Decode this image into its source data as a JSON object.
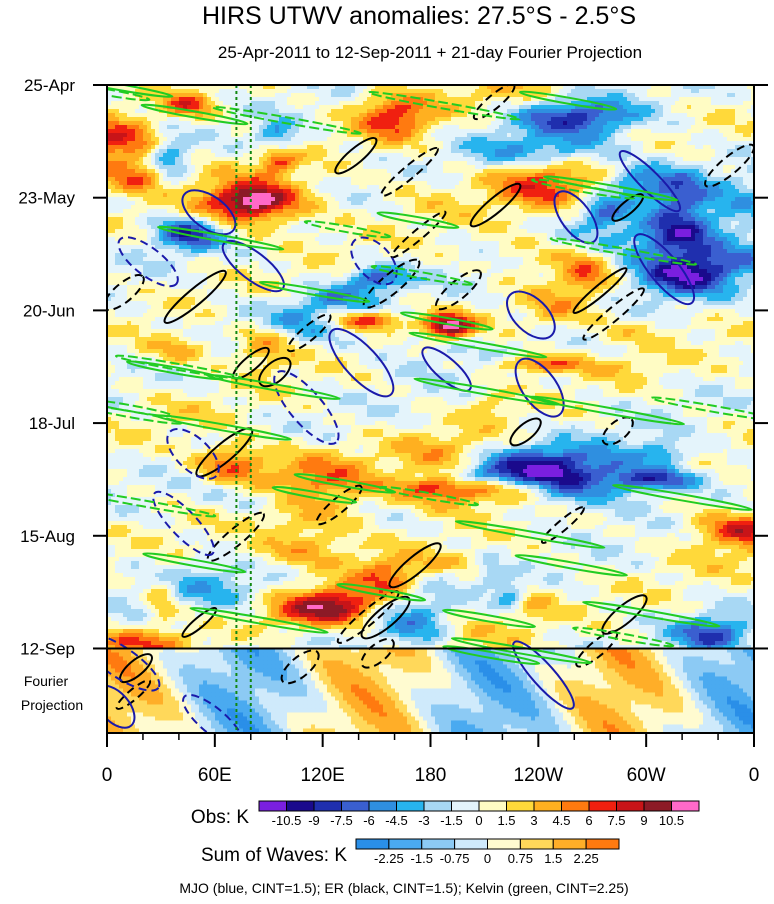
{
  "chart_data": {
    "type": "heatmap",
    "title": "HIRS UTWV anomalies: 27.5°S - 2.5°S",
    "subtitle": "25-Apr-2011 to 12-Sep-2011 + 21-day Fourier Projection",
    "x_axis": {
      "tick_labels": [
        "0",
        "60E",
        "120E",
        "180",
        "120W",
        "60W",
        "0"
      ],
      "tick_values_deg": [
        0,
        60,
        120,
        180,
        240,
        300,
        360
      ],
      "range_deg": [
        0,
        360
      ]
    },
    "y_axis": {
      "tick_labels": [
        "25-Apr",
        "23-May",
        "20-Jun",
        "18-Jul",
        "15-Aug",
        "12-Sep"
      ],
      "tick_values_day": [
        0,
        28,
        56,
        84,
        112,
        140
      ],
      "range_day": [
        0,
        161
      ],
      "direction": "time increases downward",
      "projection_label_lines": [
        "Fourier",
        "Projection"
      ],
      "projection_start_day": 140
    },
    "reference_lines_deg": [
      72,
      80
    ],
    "obs_colorbar": {
      "label": "Obs: K",
      "levels": [
        "-10.5",
        "-9",
        "-7.5",
        "-6",
        "-4.5",
        "-3",
        "-1.5",
        "0",
        "1.5",
        "3",
        "4.5",
        "6",
        "7.5",
        "9",
        "10.5"
      ],
      "colors": [
        "#7a1fe0",
        "#1a0a8c",
        "#1f2fae",
        "#3a5fd0",
        "#2f8fe0",
        "#27b4ee",
        "#a8d8f4",
        "#e4f4fb",
        "#fffcc4",
        "#ffd93a",
        "#ffb020",
        "#ff7a10",
        "#f02010",
        "#c81418",
        "#8c1a26",
        "#ff69c8"
      ]
    },
    "waves_colorbar": {
      "label": "Sum of Waves: K",
      "levels": [
        "-2.25",
        "-1.5",
        "-0.75",
        "0",
        "0.75",
        "1.5",
        "2.25"
      ],
      "colors": [
        "#2a8fe8",
        "#4aaaf0",
        "#8ccaf4",
        "#cfeafb",
        "#fffbd0",
        "#ffd85a",
        "#ffae28",
        "#ff7a10"
      ]
    },
    "contour_legend": "MJO (blue, CINT=1.5); ER (black, CINT=1.5); Kelvin (green, CINT=2.25)",
    "series": [
      {
        "name": "MJO",
        "color": "#1a1aaa",
        "cint": 1.5
      },
      {
        "name": "ER",
        "color": "#000000",
        "cint": 1.5
      },
      {
        "name": "Kelvin",
        "color": "#22cc22",
        "cint": 2.25
      }
    ]
  }
}
